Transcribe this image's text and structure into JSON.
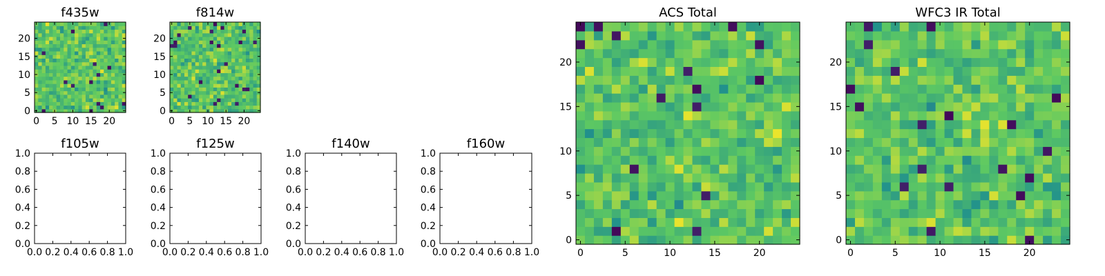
{
  "figure": {
    "panels": [
      "f435w",
      "f814w",
      "f105w",
      "f125w",
      "f140w",
      "f160w",
      "ACS Total",
      "WFC3 IR Total"
    ]
  },
  "colormap": [
    "#440154",
    "#3b528b",
    "#21918c",
    "#5ec962",
    "#fde725"
  ],
  "chart_data": [
    {
      "type": "heatmap",
      "title": "f435w",
      "grid_size": 25,
      "x_range": [
        -0.5,
        24.5
      ],
      "y_range": [
        -0.5,
        24.5
      ],
      "xticks": [
        0,
        5,
        10,
        15,
        20
      ],
      "yticks": [
        0,
        5,
        10,
        15,
        20
      ],
      "values": "random noise image, 25×25 pixels, viridis colormap (values not recoverable)"
    },
    {
      "type": "heatmap",
      "title": "f814w",
      "grid_size": 25,
      "x_range": [
        -0.5,
        24.5
      ],
      "y_range": [
        -0.5,
        24.5
      ],
      "xticks": [
        0,
        5,
        10,
        15,
        20
      ],
      "yticks": [
        0,
        5,
        10,
        15,
        20
      ],
      "values": "random noise image, 25×25 pixels, viridis colormap (values not recoverable)"
    },
    {
      "type": "empty",
      "title": "f105w",
      "xlim": [
        0.0,
        1.0
      ],
      "ylim": [
        0.0,
        1.0
      ],
      "xticks": [
        "0.0",
        "0.2",
        "0.4",
        "0.6",
        "0.8",
        "1.0"
      ],
      "yticks": [
        "0.0",
        "0.2",
        "0.4",
        "0.6",
        "0.8",
        "1.0"
      ]
    },
    {
      "type": "empty",
      "title": "f125w",
      "xlim": [
        0.0,
        1.0
      ],
      "ylim": [
        0.0,
        1.0
      ],
      "xticks": [
        "0.0",
        "0.2",
        "0.4",
        "0.6",
        "0.8",
        "1.0"
      ],
      "yticks": [
        "0.0",
        "0.2",
        "0.4",
        "0.6",
        "0.8",
        "1.0"
      ]
    },
    {
      "type": "empty",
      "title": "f140w",
      "xlim": [
        0.0,
        1.0
      ],
      "ylim": [
        0.0,
        1.0
      ],
      "xticks": [
        "0.0",
        "0.2",
        "0.4",
        "0.6",
        "0.8",
        "1.0"
      ],
      "yticks": [
        "0.0",
        "0.2",
        "0.4",
        "0.6",
        "0.8",
        "1.0"
      ]
    },
    {
      "type": "empty",
      "title": "f160w",
      "xlim": [
        0.0,
        1.0
      ],
      "ylim": [
        0.0,
        1.0
      ],
      "xticks": [
        "0.0",
        "0.2",
        "0.4",
        "0.6",
        "0.8",
        "1.0"
      ],
      "yticks": [
        "0.0",
        "0.2",
        "0.4",
        "0.6",
        "0.8",
        "1.0"
      ]
    },
    {
      "type": "heatmap",
      "title": "ACS Total",
      "grid_size": 25,
      "x_range": [
        -0.5,
        24.5
      ],
      "y_range": [
        -0.5,
        24.5
      ],
      "xticks": [
        0,
        5,
        10,
        15,
        20
      ],
      "yticks": [
        0,
        5,
        10,
        15,
        20
      ],
      "values": "random noise image, 25×25 pixels, viridis colormap (values not recoverable)"
    },
    {
      "type": "heatmap",
      "title": "WFC3 IR Total",
      "grid_size": 25,
      "x_range": [
        -0.5,
        24.5
      ],
      "y_range": [
        -0.5,
        24.5
      ],
      "xticks": [
        0,
        5,
        10,
        15,
        20
      ],
      "yticks": [
        0,
        5,
        10,
        15,
        20
      ],
      "values": "random noise image, 25×25 pixels, viridis colormap (values not recoverable)"
    }
  ]
}
